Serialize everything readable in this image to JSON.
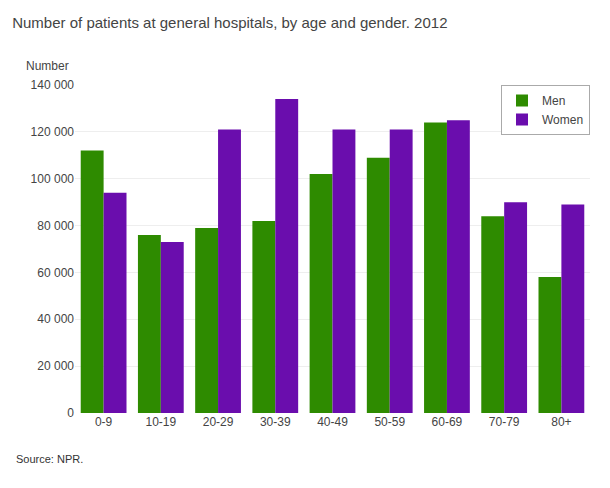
{
  "chart_data": {
    "type": "bar",
    "title": "Number of patients at general hospitals, by age and gender. 2012",
    "ylabel": "Number",
    "source": "Source: NPR.",
    "categories": [
      "0-9",
      "10-19",
      "20-29",
      "30-39",
      "40-49",
      "50-59",
      "60-69",
      "70-79",
      "80+"
    ],
    "series": [
      {
        "name": "Men",
        "color": "#2e8b00",
        "values": [
          112000,
          76000,
          79000,
          82000,
          102000,
          109000,
          124000,
          84000,
          58000
        ]
      },
      {
        "name": "Women",
        "color": "#6a0dad",
        "values": [
          94000,
          73000,
          121000,
          134000,
          121000,
          121000,
          125000,
          90000,
          89000
        ]
      }
    ],
    "ylim": [
      0,
      140000
    ],
    "yticks": [
      0,
      {
        "value": 20000,
        "label": "20 000"
      },
      {
        "value": 40000,
        "label": "40 000"
      },
      {
        "value": 60000,
        "label": "60 000"
      },
      {
        "value": 80000,
        "label": "80 000"
      },
      {
        "value": 100000,
        "label": "100 000"
      },
      {
        "value": 120000,
        "label": "120 000"
      },
      {
        "value": 140000,
        "label": "140 000"
      }
    ],
    "grid": true,
    "legend": "upper right"
  }
}
